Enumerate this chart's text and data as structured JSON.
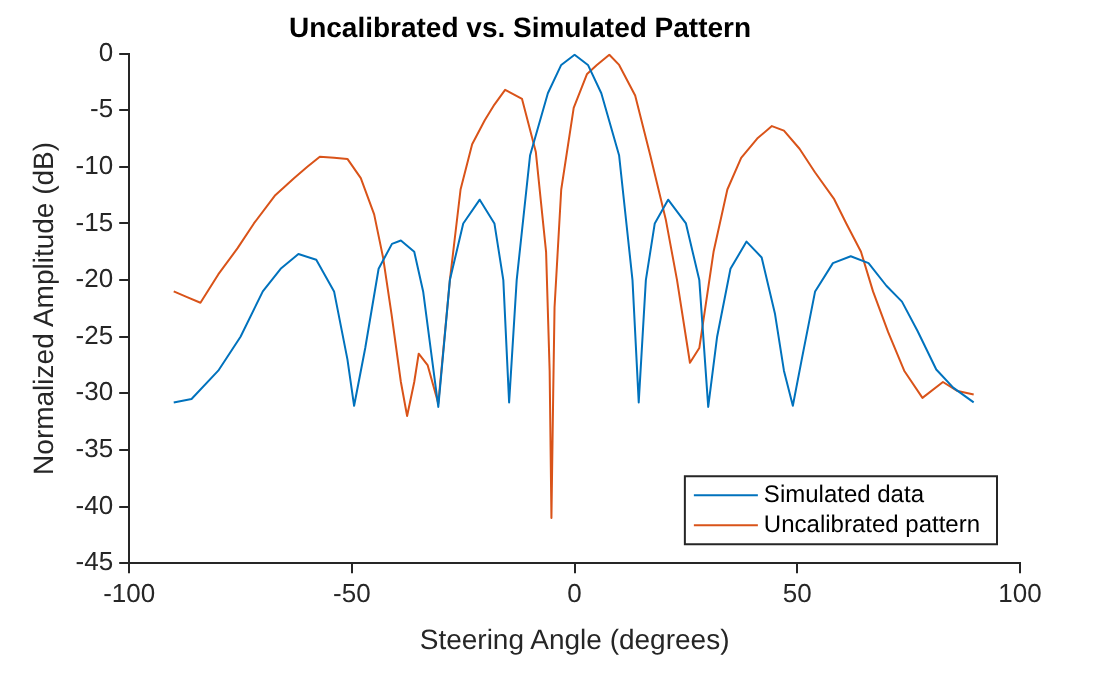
{
  "chart_data": {
    "type": "line",
    "title": "Uncalibrated vs. Simulated Pattern",
    "xlabel": "Steering Angle (degrees)",
    "ylabel": "Normalized Amplitude (dB)",
    "xlim": [
      -100,
      100
    ],
    "xticks": [
      -100,
      -50,
      0,
      50,
      100
    ],
    "ylim": [
      -45,
      0
    ],
    "yticks": [
      -45,
      -40,
      -35,
      -30,
      -25,
      -20,
      -15,
      -10,
      -5,
      0
    ],
    "grid": false,
    "legend": "bottom right",
    "marker": "none",
    "line_style": "solid",
    "series": [
      {
        "name": "Simulated data",
        "color": "#0072bd",
        "x": [
          -90,
          -86,
          -80,
          -75,
          -70,
          -66,
          -62,
          -58,
          -54,
          -51,
          -49.5,
          -47,
          -44,
          -41,
          -39,
          -36,
          -34,
          -32,
          -30.6,
          -28,
          -25,
          -21.3,
          -18,
          -16,
          -14.7,
          -13,
          -10,
          -6,
          -3,
          0,
          3,
          6,
          10,
          13,
          14.4,
          16,
          18,
          21,
          25,
          28,
          30,
          32,
          35,
          38.6,
          42,
          45,
          47,
          49,
          51,
          54,
          58,
          62,
          66,
          70,
          73.5,
          77,
          81.2,
          85,
          89.6
        ],
        "values": [
          -30.8,
          -30.5,
          -28,
          -25,
          -21,
          -19,
          -17.7,
          -18.2,
          -21,
          -27,
          -31.1,
          -26,
          -19,
          -16.8,
          -16.5,
          -17.5,
          -21,
          -27,
          -31.2,
          -20,
          -15,
          -12.9,
          -15,
          -20,
          -30.8,
          -20,
          -9,
          -3.5,
          -1,
          -0.1,
          -1,
          -3.5,
          -9,
          -20,
          -30.8,
          -20,
          -15,
          -12.9,
          -15,
          -20,
          -31.2,
          -25,
          -19,
          -16.6,
          -18,
          -23,
          -28,
          -31.1,
          -27,
          -21,
          -18.5,
          -17.9,
          -18.5,
          -20.5,
          -21.9,
          -24.5,
          -27.9,
          -29.5,
          -30.8
        ]
      },
      {
        "name": "Uncalibrated pattern",
        "color": "#d95319",
        "x": [
          -90,
          -87,
          -84,
          -80,
          -75.7,
          -72,
          -67.2,
          -63,
          -60,
          -57.2,
          -54,
          -51,
          -48,
          -45,
          -43,
          -41.1,
          -39,
          -37.6,
          -36,
          -35,
          -33,
          -30.6,
          -28,
          -25.6,
          -23,
          -20.2,
          -18,
          -15.6,
          -11.8,
          -8.7,
          -6.4,
          -5.6,
          -5.2,
          -4.8,
          -4.5,
          -3,
          -0.2,
          2.8,
          5,
          7.8,
          10,
          13.6,
          17,
          20.5,
          23,
          25.9,
          28,
          31.2,
          34.3,
          37.4,
          41,
          44.3,
          47,
          50.5,
          54,
          58.2,
          61,
          64.3,
          67,
          70.4,
          74,
          78.1,
          82.7,
          86,
          89.6
        ],
        "values": [
          -21,
          -21.5,
          -22,
          -19.5,
          -17.2,
          -15,
          -12.5,
          -11,
          -10,
          -9.1,
          -9.2,
          -9.3,
          -11,
          -14.2,
          -18,
          -23,
          -29,
          -32,
          -29,
          -26.5,
          -27.5,
          -30.9,
          -20,
          -12,
          -8,
          -5.9,
          -4.5,
          -3.2,
          -4,
          -8.7,
          -17.5,
          -28,
          -41,
          -30,
          -22.4,
          -12,
          -4.8,
          -1.8,
          -1,
          -0.1,
          -1,
          -3.7,
          -9,
          -14.7,
          -20,
          -27.3,
          -26,
          -17.5,
          -12,
          -9.2,
          -7.5,
          -6.4,
          -6.8,
          -8.4,
          -10.5,
          -12.8,
          -15,
          -17.5,
          -21,
          -24.6,
          -28,
          -30.4,
          -29,
          -29.8,
          -30.1
        ]
      }
    ]
  }
}
